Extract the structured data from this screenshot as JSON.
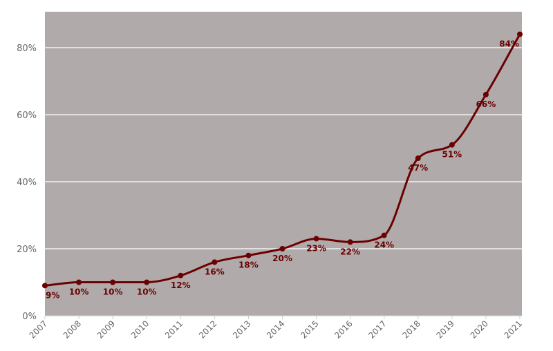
{
  "chart_data": {
    "type": "line",
    "title": "",
    "xlabel": "",
    "ylabel": "",
    "categories": [
      "2007",
      "2008",
      "2009",
      "2010",
      "2011",
      "2012",
      "2013",
      "2014",
      "2015",
      "2016",
      "2017",
      "2018",
      "2019",
      "2020",
      "2021"
    ],
    "series": [
      {
        "values": [
          9,
          10,
          10,
          10,
          12,
          16,
          18,
          20,
          23,
          22,
          24,
          47,
          51,
          66,
          84
        ],
        "labels": [
          "9%",
          "10%",
          "10%",
          "10%",
          "12%",
          "16%",
          "18%",
          "20%",
          "23%",
          "22%",
          "24%",
          "47%",
          "51%",
          "66%",
          "84%"
        ]
      }
    ],
    "ylim": [
      0,
      90
    ],
    "yticks": [
      0,
      20,
      40,
      60,
      80
    ],
    "ytick_labels": [
      "0%",
      "20%",
      "40%",
      "60%",
      "80%"
    ],
    "grid": true,
    "curve": "smooth",
    "colors": {
      "line": "#6b0000",
      "marker": "#6b0000",
      "label": "#6b0000",
      "plot_background": "#b0aaaa",
      "grid": "#ffffff"
    }
  }
}
